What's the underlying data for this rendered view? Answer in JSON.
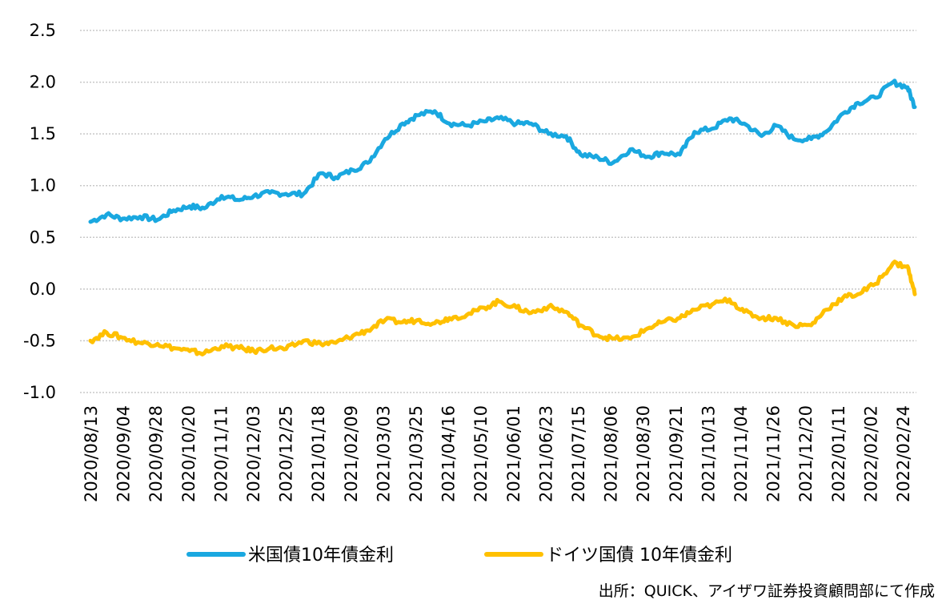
{
  "chart_data": {
    "type": "line",
    "ylim": [
      -1.0,
      2.5
    ],
    "ytick_labels": [
      "2.5",
      "2.0",
      "1.5",
      "1.0",
      "0.5",
      "0.0",
      "-0.5",
      "-1.0"
    ],
    "yticks": [
      2.5,
      2.0,
      1.5,
      1.0,
      0.5,
      0.0,
      -0.5,
      -1.0
    ],
    "x_tick_labels": [
      "2020/08/13",
      "2020/09/04",
      "2020/09/28",
      "2020/10/20",
      "2020/11/11",
      "2020/12/03",
      "2020/12/25",
      "2021/01/18",
      "2021/02/09",
      "2021/03/03",
      "2021/03/25",
      "2021/04/16",
      "2021/05/10",
      "2021/06/01",
      "2021/06/23",
      "2021/07/15",
      "2021/08/06",
      "2021/08/30",
      "2021/09/21",
      "2021/10/13",
      "2021/11/04",
      "2021/11/26",
      "2021/12/20",
      "2022/01/11",
      "2022/02/02",
      "2022/02/24"
    ],
    "grid": true,
    "legend_position": "bottom",
    "x": [
      "2020/08/13",
      "2020/08/24",
      "2020/09/04",
      "2020/09/16",
      "2020/09/28",
      "2020/10/09",
      "2020/10/20",
      "2020/10/30",
      "2020/11/11",
      "2020/11/23",
      "2020/12/03",
      "2020/12/14",
      "2020/12/25",
      "2021/01/06",
      "2021/01/18",
      "2021/01/28",
      "2021/02/09",
      "2021/02/19",
      "2021/03/03",
      "2021/03/15",
      "2021/03/25",
      "2021/04/06",
      "2021/04/16",
      "2021/04/28",
      "2021/05/10",
      "2021/05/20",
      "2021/06/01",
      "2021/06/11",
      "2021/06/23",
      "2021/07/05",
      "2021/07/15",
      "2021/07/27",
      "2021/08/06",
      "2021/08/18",
      "2021/08/30",
      "2021/09/09",
      "2021/09/21",
      "2021/10/01",
      "2021/10/13",
      "2021/10/25",
      "2021/11/04",
      "2021/11/16",
      "2021/11/26",
      "2021/12/08",
      "2021/12/20",
      "2021/12/30",
      "2022/01/11",
      "2022/01/21",
      "2022/02/02",
      "2022/02/14",
      "2022/02/24",
      "2022/03/01"
    ],
    "series": [
      {
        "name": "米国債10年債金利",
        "color": "#1aa8e0",
        "values": [
          0.65,
          0.72,
          0.68,
          0.7,
          0.67,
          0.76,
          0.8,
          0.78,
          0.9,
          0.86,
          0.9,
          0.93,
          0.92,
          0.92,
          1.12,
          1.08,
          1.15,
          1.22,
          1.45,
          1.6,
          1.68,
          1.72,
          1.6,
          1.58,
          1.62,
          1.65,
          1.6,
          1.6,
          1.5,
          1.48,
          1.3,
          1.27,
          1.22,
          1.35,
          1.28,
          1.32,
          1.3,
          1.52,
          1.55,
          1.65,
          1.6,
          1.48,
          1.58,
          1.45,
          1.45,
          1.52,
          1.7,
          1.8,
          1.85,
          2.0,
          1.95,
          1.76
        ]
      },
      {
        "name": "ドイツ国債 10年債金利",
        "color": "#ffc000",
        "values": [
          -0.5,
          -0.42,
          -0.47,
          -0.52,
          -0.53,
          -0.57,
          -0.6,
          -0.62,
          -0.55,
          -0.57,
          -0.6,
          -0.57,
          -0.58,
          -0.5,
          -0.53,
          -0.52,
          -0.45,
          -0.4,
          -0.3,
          -0.32,
          -0.3,
          -0.33,
          -0.28,
          -0.25,
          -0.18,
          -0.12,
          -0.18,
          -0.23,
          -0.17,
          -0.22,
          -0.35,
          -0.45,
          -0.48,
          -0.48,
          -0.38,
          -0.32,
          -0.28,
          -0.2,
          -0.15,
          -0.1,
          -0.22,
          -0.28,
          -0.28,
          -0.35,
          -0.35,
          -0.2,
          -0.08,
          -0.05,
          0.05,
          0.25,
          0.22,
          -0.05
        ]
      }
    ]
  },
  "source_note": "出所：QUICK、アイザワ証券投資顧問部にて作成"
}
